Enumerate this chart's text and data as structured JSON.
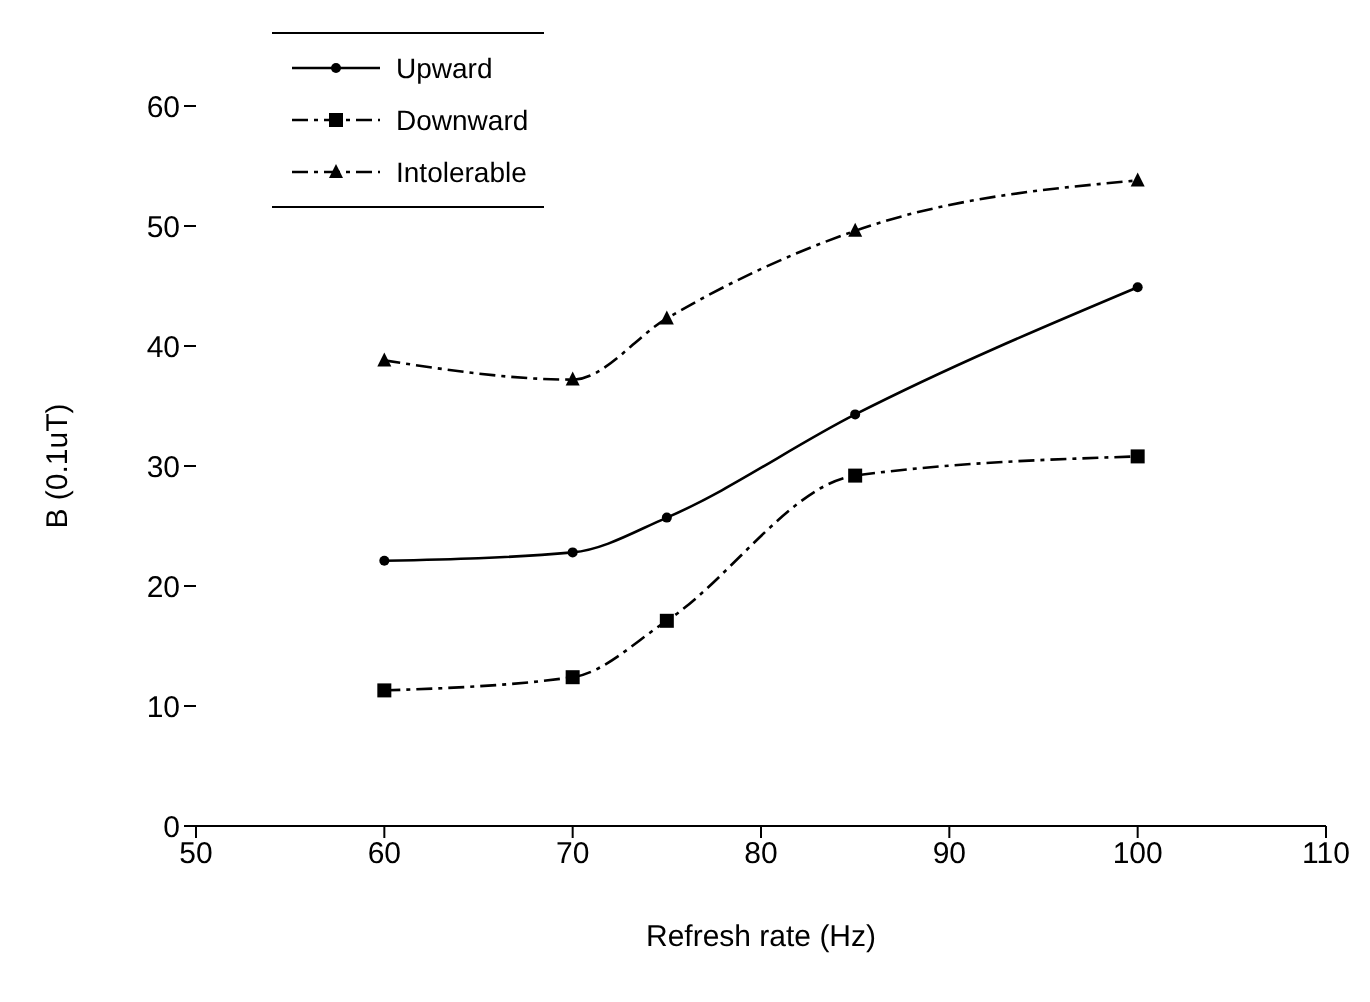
{
  "chart_data": {
    "type": "line",
    "xlabel": "Refresh rate (Hz)",
    "ylabel": "B (0.1uT)",
    "x": [
      60,
      70,
      75,
      85,
      100
    ],
    "series": [
      {
        "name": "Upward",
        "color": "#000000",
        "values": [
          22.1,
          22.8,
          25.7,
          34.3,
          44.9
        ],
        "marker": "circle",
        "line_style": "solid"
      },
      {
        "name": "Downward",
        "color": "#000000",
        "values": [
          11.3,
          12.4,
          17.1,
          29.2,
          30.8
        ],
        "marker": "square",
        "line_style": "dashed"
      },
      {
        "name": "Intolerable",
        "color": "#000000",
        "values": [
          38.8,
          37.2,
          42.3,
          49.6,
          53.8
        ],
        "marker": "triangle",
        "line_style": "dashed"
      }
    ],
    "xlim": [
      50,
      110
    ],
    "xticks": [
      50,
      60,
      70,
      80,
      90,
      100,
      110
    ],
    "ylim": [
      0,
      60
    ],
    "yticks": [
      0,
      10,
      20,
      30,
      40,
      50,
      60
    ],
    "grid": false,
    "legend": "top left"
  }
}
